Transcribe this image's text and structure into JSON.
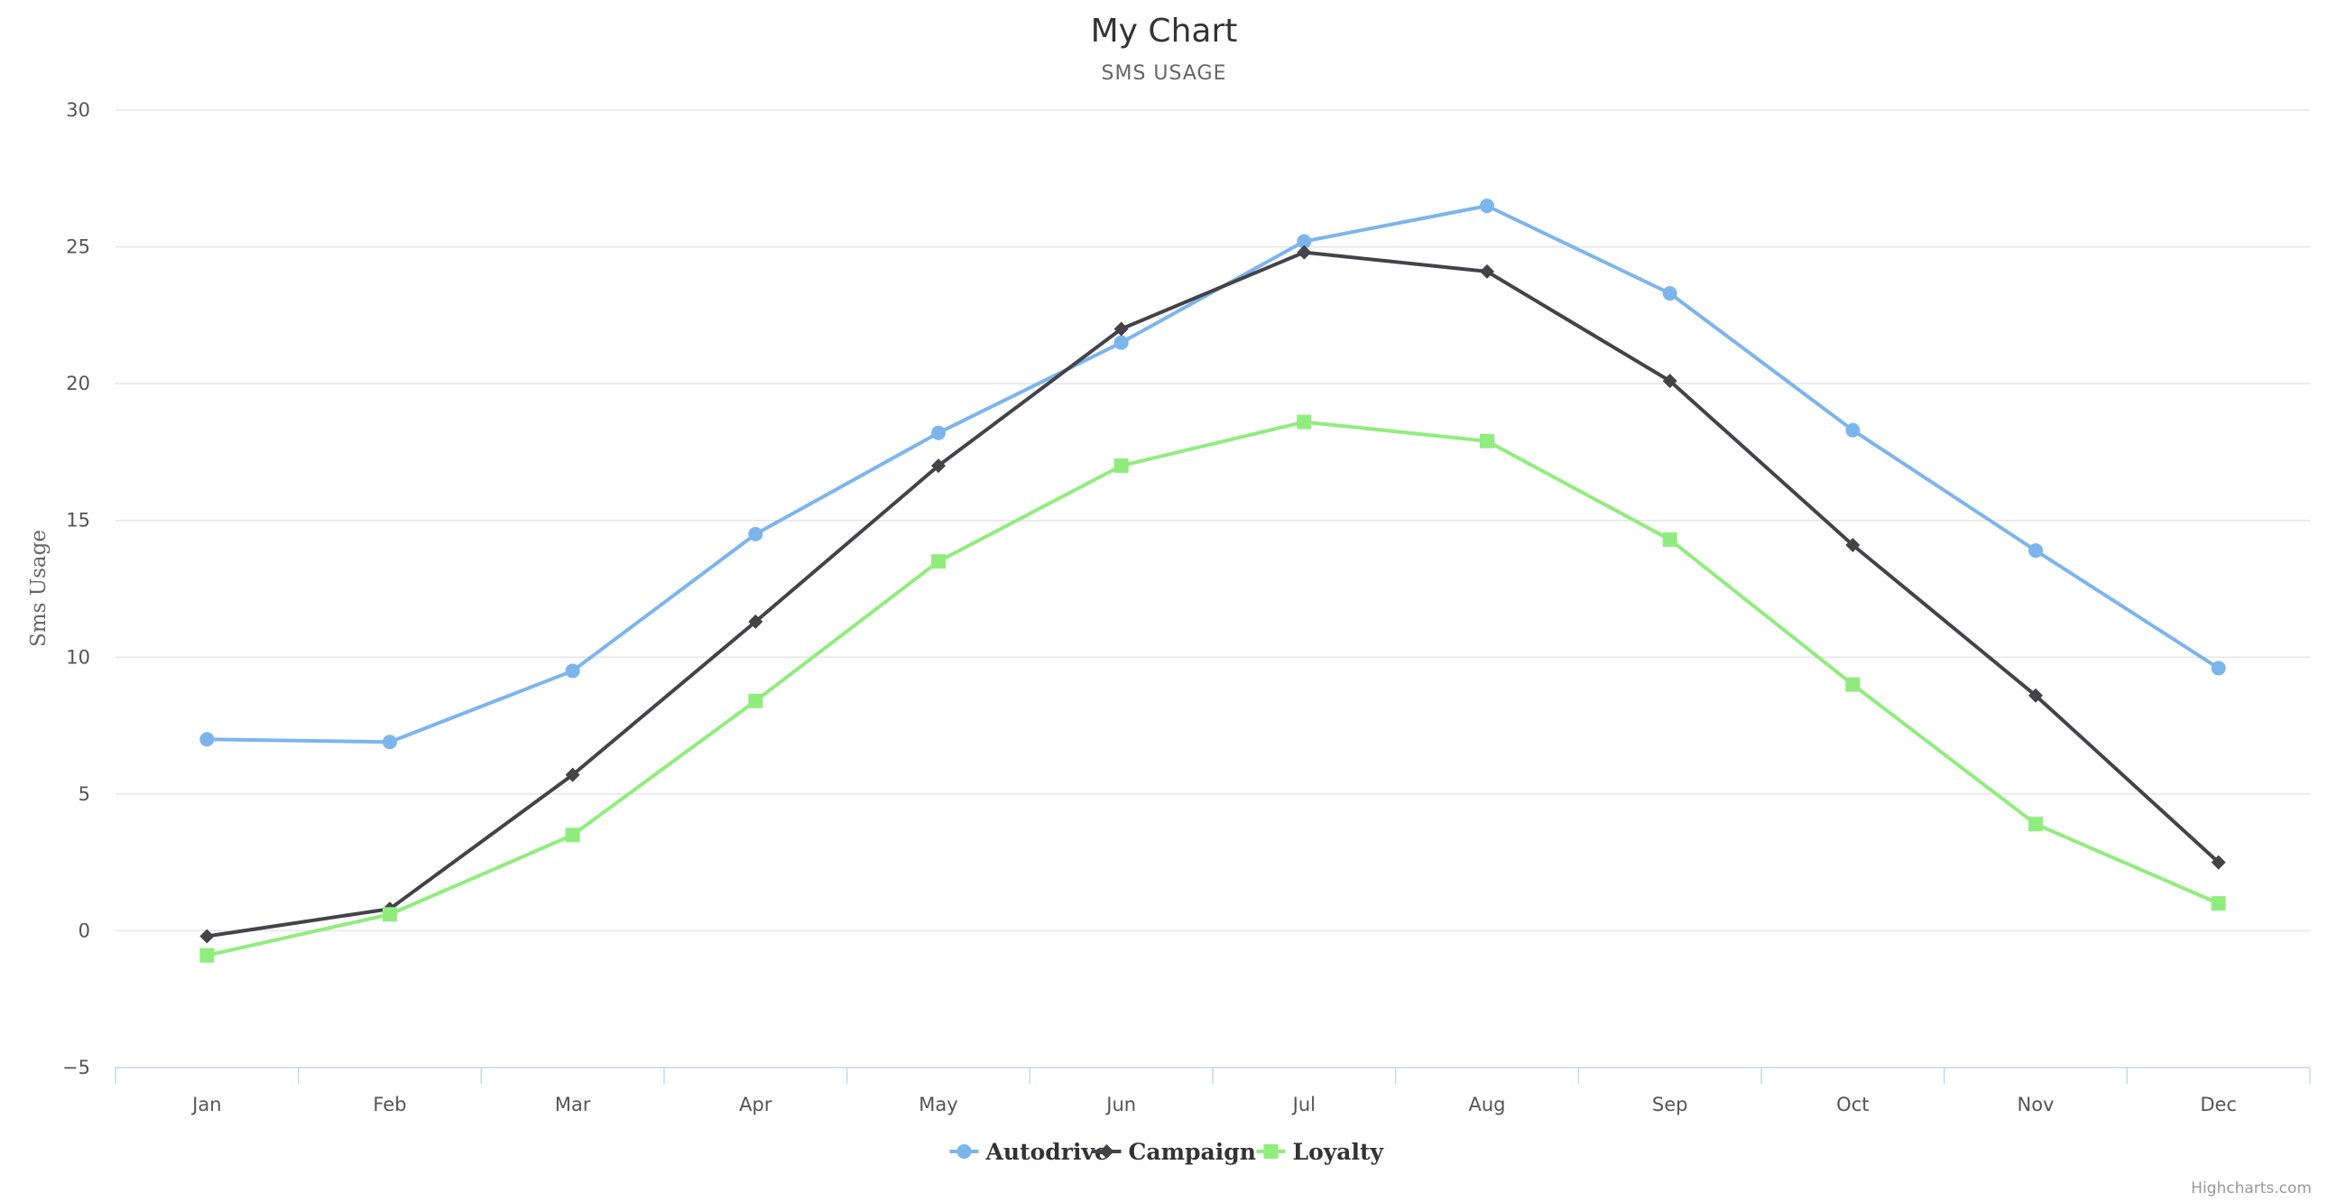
{
  "chart_data": {
    "type": "line",
    "title": "My Chart",
    "subtitle": "SMS USAGE",
    "xlabel": "",
    "ylabel": "Sms Usage",
    "ylim": [
      -5,
      30
    ],
    "yticks": [
      -5,
      0,
      5,
      10,
      15,
      20,
      25,
      30
    ],
    "grid": true,
    "legend": "bottom-center",
    "categories": [
      "Jan",
      "Feb",
      "Mar",
      "Apr",
      "May",
      "Jun",
      "Jul",
      "Aug",
      "Sep",
      "Oct",
      "Nov",
      "Dec"
    ],
    "series": [
      {
        "name": "Autodrive",
        "color": "#7cb5ec",
        "marker": "circle",
        "values": [
          7.0,
          6.9,
          9.5,
          14.5,
          18.2,
          21.5,
          25.2,
          26.5,
          23.3,
          18.3,
          13.9,
          9.6
        ]
      },
      {
        "name": "Campaign",
        "color": "#434348",
        "marker": "diamond",
        "values": [
          -0.2,
          0.8,
          5.7,
          11.3,
          17.0,
          22.0,
          24.8,
          24.1,
          20.1,
          14.1,
          8.6,
          2.5
        ]
      },
      {
        "name": "Loyalty",
        "color": "#90ed7d",
        "marker": "square",
        "values": [
          -0.9,
          0.6,
          3.5,
          8.4,
          13.5,
          17.0,
          18.6,
          17.9,
          14.3,
          9.0,
          3.9,
          1.0
        ]
      }
    ]
  },
  "credits": "Highcharts.com"
}
